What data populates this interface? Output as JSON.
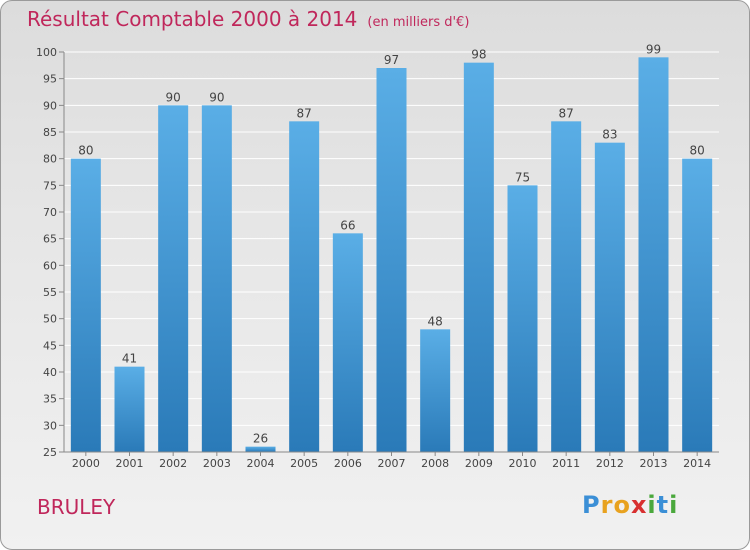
{
  "chart_data": {
    "type": "bar",
    "title": "Résultat Comptable 2000 à 2014",
    "subtitle": "(en milliers d'€)",
    "categories": [
      "2000",
      "2001",
      "2002",
      "2003",
      "2004",
      "2005",
      "2006",
      "2007",
      "2008",
      "2009",
      "2010",
      "2011",
      "2012",
      "2013",
      "2014"
    ],
    "values": [
      80,
      41,
      90,
      90,
      26,
      87,
      66,
      97,
      48,
      98,
      75,
      87,
      83,
      99,
      80
    ],
    "ylim": [
      25,
      100
    ],
    "yticks": [
      25,
      30,
      35,
      40,
      45,
      50,
      55,
      60,
      65,
      70,
      75,
      80,
      85,
      90,
      95,
      100
    ],
    "grid": true,
    "legend": "none",
    "bar_color_top": "#5aaee6",
    "bar_color_bottom": "#2a7ab8"
  },
  "location": "BRULEY",
  "logo": {
    "text": "Proxiti",
    "letters": [
      {
        "ch": "P",
        "color": "#3b8fd6"
      },
      {
        "ch": "r",
        "color": "#e8a21f"
      },
      {
        "ch": "o",
        "color": "#e8a21f"
      },
      {
        "ch": "x",
        "color": "#d83030"
      },
      {
        "ch": "i",
        "color": "#4aa83c"
      },
      {
        "ch": "t",
        "color": "#3b8fd6"
      },
      {
        "ch": "i",
        "color": "#4aa83c"
      }
    ]
  }
}
